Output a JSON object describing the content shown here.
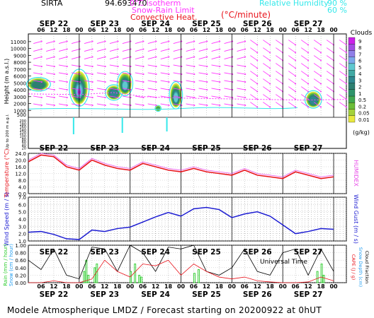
{
  "header": {
    "station": "SIRTA",
    "coords": "94.693470",
    "isotherm_label": "0°C isotherm",
    "snow_rain_label": "Snow-Rain Limit",
    "convective_label": "Convective Heat.",
    "convective_unit": "(°C/minute)",
    "rh_label": "Relative Humidity",
    "rh_90": "90 %",
    "rh_60": "60 %"
  },
  "footer": {
    "text": "Modele Atmospherique LMDZ / Forecast starting on 20200922 at 0hUT"
  },
  "colors": {
    "temperature": "#e8141c",
    "humidex": "#e84de8",
    "wind": "#1c1cd2",
    "rain": "#2bcc2b",
    "snow": "#1f9cf0",
    "cape": "#e8141c",
    "cloud_fraction": "#000000",
    "rh_curve": "#35e8ea",
    "wind_barb": "#ff33ff"
  },
  "chart_data": [
    {
      "type": "heatmap",
      "name": "cloud-panel",
      "days": [
        "SEP 22",
        "SEP 23",
        "SEP 24",
        "SEP 25",
        "SEP 26",
        "SEP 27"
      ],
      "hours": [
        "06",
        "12",
        "18",
        "00"
      ],
      "ylabel": "Height (m a.s.l.)",
      "ylabel_low": "Up to 200 m a.g.l.",
      "yticks": [
        "11000",
        "10000",
        "9000",
        "8000",
        "7000",
        "6000",
        "5000",
        "4000",
        "3000",
        "2000",
        "1000",
        "500",
        "200",
        "180",
        "160",
        "140",
        "120",
        "100",
        "80",
        "60",
        "40",
        "20"
      ],
      "colorbar": {
        "title": "Clouds",
        "unit": "(g/kg)",
        "ticks": [
          "9",
          "8",
          "7",
          "6",
          "5",
          "4",
          "3",
          "2",
          "1",
          "0.5",
          "0.2",
          "0.05",
          "0.01"
        ],
        "colors": [
          "#cc20e8",
          "#a34be4",
          "#8f7fe8",
          "#7aa8ea",
          "#5fc8cf",
          "#42a9a4",
          "#2f8890",
          "#2d7f70",
          "#2e936a",
          "#40a850",
          "#6cbd38",
          "#a3d13b",
          "#e8e83e"
        ]
      },
      "cloud_blobs": [
        {
          "t": 0.2,
          "h": 4800,
          "w": 0.4,
          "hh": 1400,
          "max": 2
        },
        {
          "t": 1.0,
          "h": 4300,
          "w": 0.33,
          "hh": 3800,
          "max": 9
        },
        {
          "t": 1.68,
          "h": 3600,
          "w": 0.28,
          "hh": 1600,
          "max": 3
        },
        {
          "t": 1.9,
          "h": 4900,
          "w": 0.26,
          "hh": 2500,
          "max": 5
        },
        {
          "t": 2.55,
          "h": 1300,
          "w": 0.1,
          "hh": 600,
          "max": 0.5
        },
        {
          "t": 2.9,
          "h": 3200,
          "w": 0.22,
          "hh": 2800,
          "max": 5
        },
        {
          "t": 5.6,
          "h": 2600,
          "w": 0.28,
          "hh": 1800,
          "max": 3
        }
      ]
    },
    {
      "type": "line",
      "name": "temperature-panel",
      "ylabel": "Temperature (°C)",
      "ylabel_right": "HUMIDEX",
      "yticks": [
        "24.0",
        "20.0",
        "16.0",
        "12.0",
        "8.0",
        "4.0",
        "0.0"
      ],
      "ylim": [
        0,
        24
      ],
      "x_hours": [
        0,
        6,
        12,
        18,
        24,
        30,
        36,
        42,
        48,
        54,
        60,
        66,
        72,
        78,
        84,
        90,
        96,
        102,
        108,
        114,
        120,
        126,
        132,
        138,
        144
      ],
      "series": [
        {
          "name": "Temperature",
          "values": [
            19,
            23,
            22,
            16,
            14,
            20,
            17,
            15,
            14,
            18,
            16,
            14,
            13,
            15,
            13,
            12,
            11,
            14,
            11,
            10,
            9,
            13,
            11,
            9,
            10
          ]
        },
        {
          "name": "HUMIDEX",
          "values": [
            20,
            24,
            23,
            17,
            15,
            21,
            18,
            16,
            15,
            19,
            17,
            15,
            14,
            16,
            14,
            13,
            12,
            15,
            12,
            11,
            10,
            14,
            12,
            10,
            11
          ]
        }
      ]
    },
    {
      "type": "line",
      "name": "wind-panel",
      "ylabel": "Wind Speed (m / s)",
      "ylabel_right": "Wind Gust (m / s)",
      "yticks": [
        "7.0",
        "6.0",
        "5.0",
        "4.0",
        "3.0",
        "2.0",
        "1.0"
      ],
      "ylim": [
        1,
        7
      ],
      "x_hours": [
        0,
        6,
        12,
        18,
        24,
        30,
        36,
        42,
        48,
        54,
        60,
        66,
        72,
        78,
        84,
        90,
        96,
        102,
        108,
        114,
        120,
        126,
        132,
        138,
        144
      ],
      "series": [
        {
          "name": "Wind Speed",
          "values": [
            2.2,
            2.3,
            1.9,
            1.3,
            1.2,
            2.5,
            2.3,
            2.7,
            2.9,
            3.6,
            4.3,
            4.9,
            4.4,
            5.4,
            5.6,
            5.3,
            4.2,
            4.7,
            5.0,
            4.4,
            3.2,
            2.0,
            2.3,
            2.7,
            2.6
          ]
        }
      ]
    },
    {
      "type": "bar",
      "name": "precip-panel",
      "ylabel": "Rain (mm / hour)",
      "ylabel2": "Snow (cm / hour)",
      "ylabel_right": "CAPE (J / g)",
      "ylabel_right2": "Snow Depth (cm)",
      "ylabel_right3": "Cloud Fraction",
      "yticks": [
        "1.00",
        "0.80",
        "0.60",
        "0.40",
        "0.20",
        "0.00"
      ],
      "ylim": [
        0,
        1
      ],
      "x_hours": [
        0,
        6,
        12,
        18,
        24,
        30,
        36,
        42,
        48,
        54,
        60,
        66,
        72,
        78,
        84,
        90,
        96,
        102,
        108,
        114,
        120,
        126,
        132,
        138,
        144
      ],
      "series": [
        {
          "name": "Cloud Fraction",
          "values": [
            0.6,
            0.35,
            0.9,
            0.2,
            0.1,
            0.95,
            0.9,
            0.3,
            1.0,
            0.8,
            0.3,
            0.95,
            0.9,
            1.0,
            0.3,
            0.2,
            0.4,
            0.9,
            0.3,
            0.2,
            0.8,
            0.9,
            0.2,
            0.9,
            0.3
          ]
        },
        {
          "name": "CAPE",
          "values": [
            0.0,
            0.0,
            0.05,
            0.0,
            0.0,
            0.1,
            0.6,
            0.3,
            0.15,
            0.5,
            0.45,
            0.6,
            0.2,
            0.5,
            0.3,
            0.15,
            0.1,
            0.15,
            0.05,
            0.02,
            0.0,
            0.0,
            0.02,
            0.15,
            0.05
          ]
        },
        {
          "name": "Rain",
          "bars_hour": [
            26,
            27,
            28,
            31,
            32,
            48,
            50,
            52,
            53,
            78,
            80,
            136,
            138,
            139
          ],
          "bars_val": [
            0.3,
            0.6,
            0.2,
            0.4,
            0.5,
            0.3,
            0.5,
            0.2,
            0.15,
            0.25,
            0.35,
            0.3,
            0.5,
            0.2
          ]
        }
      ]
    }
  ],
  "xaxis": {
    "days": [
      "SEP 22",
      "SEP 23",
      "SEP 24",
      "SEP 25",
      "SEP 26",
      "SEP 27"
    ],
    "hour_ticks": [
      "06",
      "12",
      "18",
      "00"
    ],
    "label": "Universal Time"
  }
}
